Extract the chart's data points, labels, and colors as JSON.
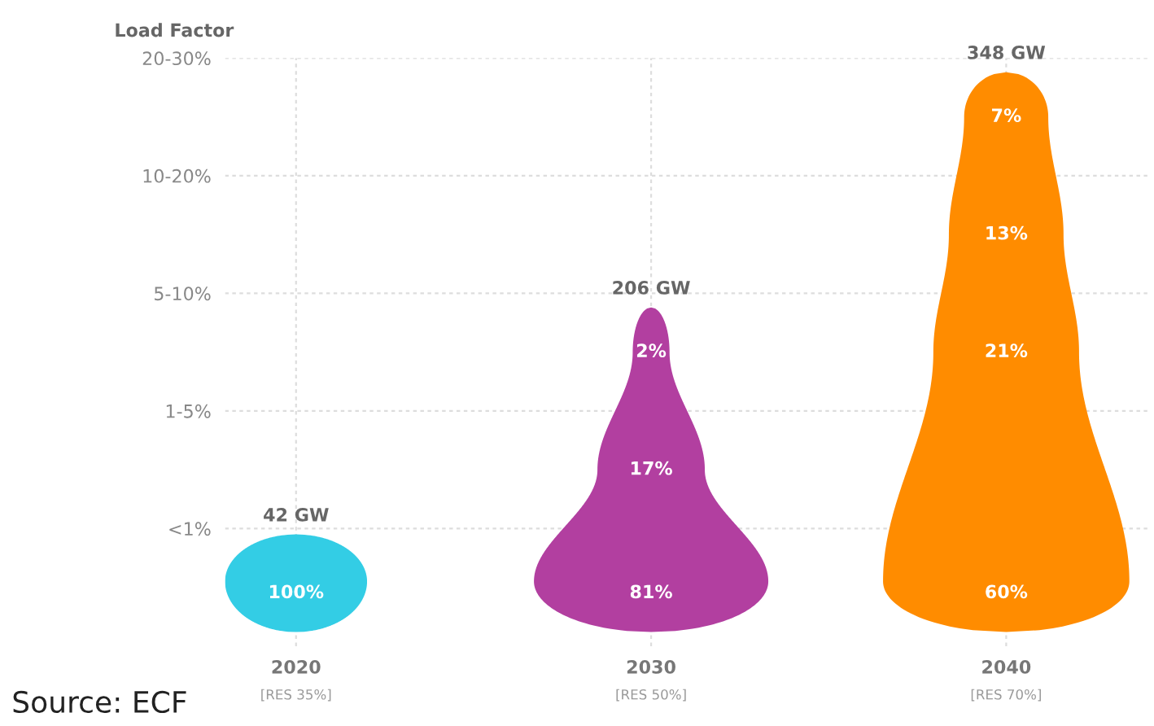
{
  "chart_data": {
    "type": "heatmap",
    "cell_labels": [
      [
        null,
        null,
        "7%"
      ],
      [
        null,
        null,
        "13%"
      ],
      [
        null,
        "2%",
        "21%"
      ],
      [
        null,
        "17%",
        null
      ],
      [
        "100%",
        "81%",
        "60%"
      ]
    ],
    "ylabel": "Load Factor",
    "categories": [
      "2020",
      "2030",
      "2040"
    ],
    "y_categories": [
      "20-30%",
      "10-20%",
      "5-10%",
      "1-5%",
      "<1%"
    ],
    "cells": [
      [
        null,
        null,
        7
      ],
      [
        null,
        null,
        13
      ],
      [
        null,
        2,
        21
      ],
      [
        null,
        17,
        null
      ],
      [
        100,
        81,
        60
      ]
    ],
    "grid": true,
    "colors": [
      "#33cde5",
      "#b23fa0",
      "#ff8c00"
    ],
    "totals": [
      "42 GW",
      "206 GW",
      "348 GW"
    ],
    "annotations": [
      "[RES 35%]",
      "[RES 50%]",
      "[RES 70%]",
      "Source: ECF"
    ]
  }
}
